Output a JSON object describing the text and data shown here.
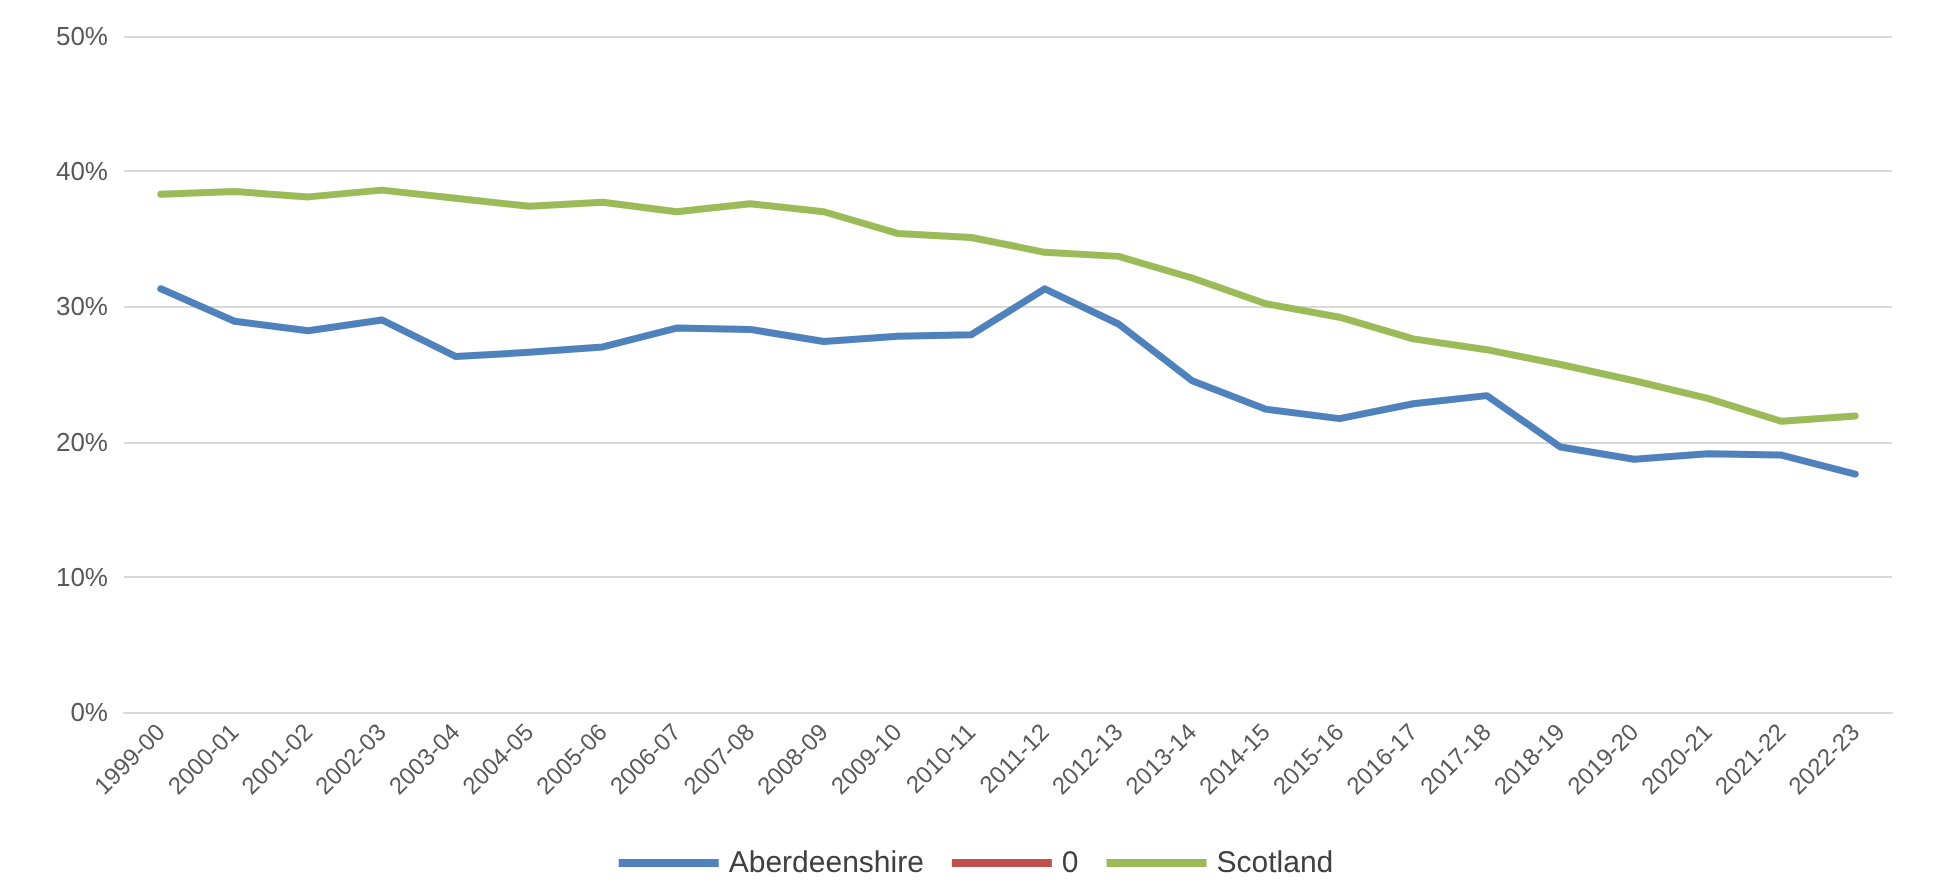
{
  "chart_data": {
    "type": "line",
    "categories": [
      "1999-00",
      "2000-01",
      "2001-02",
      "2002-03",
      "2003-04",
      "2004-05",
      "2005-06",
      "2006-07",
      "2007-08",
      "2008-09",
      "2009-10",
      "2010-11",
      "2011-12",
      "2012-13",
      "2013-14",
      "2014-15",
      "2015-16",
      "2016-17",
      "2017-18",
      "2018-19",
      "2019-20",
      "2020-21",
      "2021-22",
      "2022-23"
    ],
    "series": [
      {
        "name": "Aberdeenshire",
        "color": "#4f81bd",
        "values": [
          31.3,
          28.9,
          28.2,
          29.0,
          26.3,
          26.6,
          27.0,
          28.4,
          28.3,
          27.4,
          27.8,
          27.9,
          31.3,
          28.7,
          24.5,
          22.4,
          21.7,
          22.8,
          23.4,
          19.6,
          18.7,
          19.1,
          19.0,
          17.6
        ]
      },
      {
        "name": "0",
        "color": "#c0504d",
        "values": [
          null,
          null,
          null,
          null,
          null,
          null,
          null,
          null,
          null,
          null,
          null,
          null,
          null,
          null,
          null,
          null,
          null,
          null,
          null,
          null,
          null,
          null,
          null,
          null
        ]
      },
      {
        "name": "Scotland",
        "color": "#9bbb59",
        "values": [
          38.3,
          38.5,
          38.1,
          38.6,
          38.0,
          37.4,
          37.7,
          37.0,
          37.6,
          37.0,
          35.4,
          35.1,
          34.0,
          33.7,
          32.1,
          30.2,
          29.2,
          27.6,
          26.8,
          25.7,
          24.5,
          23.2,
          21.5,
          21.9
        ]
      }
    ],
    "ylim": [
      0,
      50
    ],
    "yticks": [
      {
        "value": 0,
        "label": "0%"
      },
      {
        "value": 10,
        "label": "10%"
      },
      {
        "value": 20,
        "label": "20%"
      },
      {
        "value": 30,
        "label": "30%"
      },
      {
        "value": 40,
        "label": "40%"
      },
      {
        "value": 50,
        "label": "50%"
      }
    ],
    "grid": "y",
    "legend": "bottom",
    "marker": "none",
    "line_style": "solid"
  }
}
